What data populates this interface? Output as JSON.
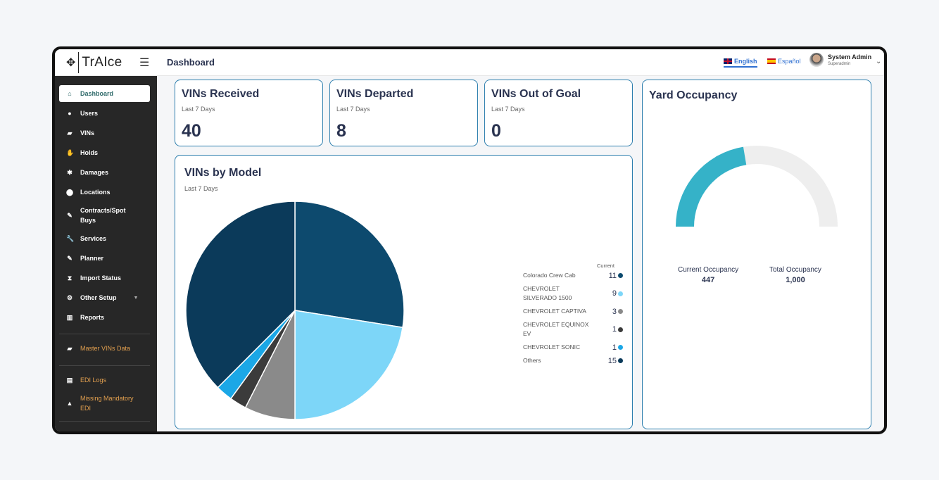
{
  "header": {
    "logo": "TrAIce",
    "title": "Dashboard",
    "lang_en": "English",
    "lang_es": "Español",
    "user_name": "System Admin",
    "user_role": "Superadmin"
  },
  "sidebar": {
    "items": [
      {
        "label": "Dashboard",
        "icon": "home-icon"
      },
      {
        "label": "Users",
        "icon": "user-icon"
      },
      {
        "label": "VINs",
        "icon": "car-icon"
      },
      {
        "label": "Holds",
        "icon": "hand-icon"
      },
      {
        "label": "Damages",
        "icon": "car-crash-icon"
      },
      {
        "label": "Locations",
        "icon": "map-pin-icon"
      },
      {
        "label": "Contracts/Spot Buys",
        "icon": "document-edit-icon"
      },
      {
        "label": "Services",
        "icon": "wrench-icon"
      },
      {
        "label": "Planner",
        "icon": "document-edit-icon"
      },
      {
        "label": "Import Status",
        "icon": "hourglass-icon"
      },
      {
        "label": "Other Setup",
        "icon": "gears-icon"
      },
      {
        "label": "Reports",
        "icon": "chart-icon"
      }
    ],
    "extra": [
      {
        "label": "Master VINs Data",
        "icon": "car-icon"
      },
      {
        "label": "EDI Logs",
        "icon": "file-icon"
      },
      {
        "label": "Missing Mandatory EDI",
        "icon": "warning-icon"
      }
    ]
  },
  "cards": [
    {
      "title": "VINs Received",
      "sub": "Last 7 Days",
      "value": "40"
    },
    {
      "title": "VINs Departed",
      "sub": "Last 7 Days",
      "value": "8"
    },
    {
      "title": "VINs Out of Goal",
      "sub": "Last 7 Days",
      "value": "0"
    }
  ],
  "chart_data": [
    {
      "type": "pie",
      "title": "VINs by Model",
      "subtitle": "Last 7 Days",
      "legend_header": "Current",
      "series": [
        {
          "name": "Colorado Crew Cab",
          "value": 11,
          "color": "#0d4a6e"
        },
        {
          "name": "CHEVROLET SILVERADO 1500",
          "value": 9,
          "color": "#7dd6f8"
        },
        {
          "name": "CHEVROLET CAPTIVA",
          "value": 3,
          "color": "#8a8a8a"
        },
        {
          "name": "CHEVROLET EQUINOX EV",
          "value": 1,
          "color": "#3b3b3b"
        },
        {
          "name": "CHEVROLET SONIC",
          "value": 1,
          "color": "#1ba7e6"
        },
        {
          "name": "Others",
          "value": 15,
          "color": "#0b3a5a"
        }
      ]
    },
    {
      "type": "gauge",
      "title": "Yard Occupancy",
      "current_label": "Current Occupancy",
      "current": 447,
      "current_text": "447",
      "total_label": "Total Occupancy",
      "total": 1000,
      "total_text": "1,000",
      "fill_color": "#35b2c8",
      "track_color": "#eeeeee"
    }
  ]
}
